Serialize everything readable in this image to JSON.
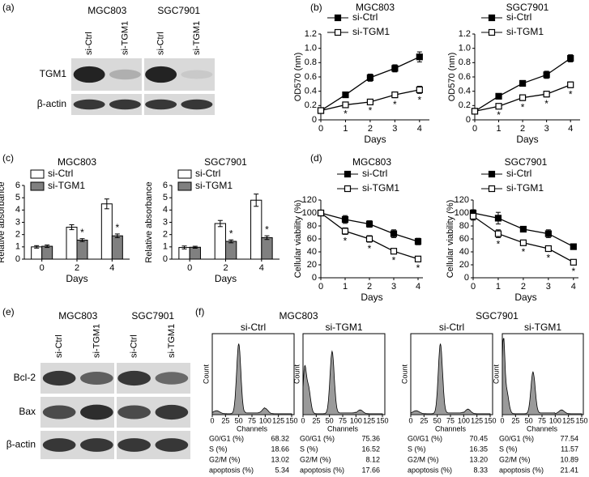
{
  "panel_labels": [
    "(a)",
    "(b)",
    "(c)",
    "(d)",
    "(e)",
    "(f)"
  ],
  "blot_a": {
    "groups": [
      "MGC803",
      "SGC7901"
    ],
    "lanes": [
      "si-Ctrl",
      "si-TGM1"
    ],
    "rows": [
      "TGM1",
      "β-actin"
    ]
  },
  "blot_e": {
    "groups": [
      "MGC803",
      "SGC7901"
    ],
    "lanes": [
      "si-Ctrl",
      "si-TGM1"
    ],
    "rows": [
      "Bcl-2",
      "Bax",
      "β-actin"
    ]
  },
  "chart_data": [
    {
      "type": "line",
      "title": "MGC803",
      "xlabel": "Days",
      "ylabel": "OD570 (nm)",
      "x": [
        0,
        1,
        2,
        3,
        4
      ],
      "xlim": [
        0,
        4.4
      ],
      "xticks": [
        0,
        1,
        2,
        3,
        4
      ],
      "ylim": [
        0,
        1.2
      ],
      "yticks": [
        0,
        0.2,
        0.4,
        0.6,
        0.8,
        {
          "value": 1,
          "label": "1.0"
        },
        1.2
      ],
      "series": [
        {
          "name": "si-Ctrl",
          "color": "#000000",
          "marker": "filled-square",
          "values": [
            0.13,
            0.35,
            0.59,
            0.72,
            0.88
          ],
          "errors": [
            0.03,
            0.03,
            0.05,
            0.05,
            0.07
          ]
        },
        {
          "name": "si-TGM1",
          "color": "#000000",
          "marker": "open-square",
          "values": [
            0.13,
            0.21,
            0.25,
            0.35,
            0.42
          ],
          "errors": [
            0.03,
            0.03,
            0.03,
            0.04,
            0.05
          ]
        }
      ],
      "annotations": [
        {
          "x": 1,
          "text": "*"
        },
        {
          "x": 2,
          "text": "*"
        },
        {
          "x": 3,
          "text": "*"
        },
        {
          "x": 4,
          "text": "*"
        }
      ]
    },
    {
      "type": "line",
      "title": "SGC7901",
      "xlabel": "Days",
      "ylabel": "OD570 (nm)",
      "x": [
        0,
        1,
        2,
        3,
        4
      ],
      "xlim": [
        0,
        4.4
      ],
      "xticks": [
        0,
        1,
        2,
        3,
        4
      ],
      "ylim": [
        0,
        1.2
      ],
      "yticks": [
        0,
        0.2,
        0.4,
        0.6,
        0.8,
        {
          "value": 1,
          "label": "1.0"
        },
        1.2
      ],
      "series": [
        {
          "name": "si-Ctrl",
          "color": "#000000",
          "marker": "filled-square",
          "values": [
            0.12,
            0.33,
            0.51,
            0.63,
            0.86
          ],
          "errors": [
            0.03,
            0.03,
            0.04,
            0.05,
            0.05
          ]
        },
        {
          "name": "si-TGM1",
          "color": "#000000",
          "marker": "open-square",
          "values": [
            0.12,
            0.19,
            0.31,
            0.36,
            0.49
          ],
          "errors": [
            0.03,
            0.03,
            0.04,
            0.04,
            0.04
          ]
        }
      ],
      "annotations": [
        {
          "x": 1,
          "text": "*"
        },
        {
          "x": 2,
          "text": "*"
        },
        {
          "x": 3,
          "text": "*"
        },
        {
          "x": 4,
          "text": "*"
        }
      ]
    },
    {
      "type": "bar",
      "title": "MGC803",
      "xlabel": "Days",
      "ylabel": "Relative absorbance",
      "categories": [
        "0",
        "2",
        "4"
      ],
      "ylim": [
        0,
        6
      ],
      "yticks": [
        0,
        1,
        2,
        3,
        4,
        5,
        6
      ],
      "series": [
        {
          "name": "si-Ctrl",
          "color": "#ffffff",
          "values": [
            1.0,
            2.6,
            4.5
          ],
          "errors": [
            0.1,
            0.2,
            0.4
          ]
        },
        {
          "name": "si-TGM1",
          "color": "#808080",
          "values": [
            1.05,
            1.55,
            1.9
          ],
          "errors": [
            0.1,
            0.12,
            0.15
          ]
        }
      ],
      "annotations": [
        {
          "category": "2",
          "text": "*"
        },
        {
          "category": "4",
          "text": "*"
        }
      ]
    },
    {
      "type": "bar",
      "title": "SGC7901",
      "xlabel": "Days",
      "ylabel": "Relative absorbance",
      "categories": [
        "0",
        "2",
        "4"
      ],
      "ylim": [
        0,
        6
      ],
      "yticks": [
        0,
        1,
        2,
        3,
        4,
        5,
        6
      ],
      "series": [
        {
          "name": "si-Ctrl",
          "color": "#ffffff",
          "values": [
            0.95,
            2.9,
            4.8
          ],
          "errors": [
            0.12,
            0.25,
            0.5
          ]
        },
        {
          "name": "si-TGM1",
          "color": "#808080",
          "values": [
            0.97,
            1.45,
            1.75
          ],
          "errors": [
            0.08,
            0.12,
            0.15
          ]
        }
      ],
      "annotations": [
        {
          "category": "2",
          "text": "*"
        },
        {
          "category": "4",
          "text": "*"
        }
      ]
    },
    {
      "type": "line",
      "title": "MGC803",
      "xlabel": "Days",
      "ylabel": "Cellular viability (%)",
      "x": [
        0,
        1,
        2,
        3,
        4
      ],
      "xlim": [
        0,
        4.2
      ],
      "xticks": [
        0,
        1,
        2,
        3,
        4
      ],
      "ylim": [
        0,
        120
      ],
      "yticks": [
        0,
        20,
        40,
        60,
        80,
        100,
        120
      ],
      "series": [
        {
          "name": "si-Ctrl",
          "color": "#000000",
          "marker": "filled-square",
          "values": [
            100,
            90,
            83,
            68,
            56
          ],
          "errors": [
            4,
            6,
            5,
            6,
            5
          ]
        },
        {
          "name": "si-TGM1",
          "color": "#000000",
          "marker": "open-square",
          "values": [
            100,
            72,
            60,
            41,
            29
          ],
          "errors": [
            4,
            5,
            5,
            4,
            4
          ]
        }
      ],
      "annotations": [
        {
          "x": 1,
          "text": "*"
        },
        {
          "x": 2,
          "text": "*"
        },
        {
          "x": 3,
          "text": "*"
        },
        {
          "x": 4,
          "text": "*"
        }
      ]
    },
    {
      "type": "line",
      "title": "SGC7901",
      "xlabel": "Days",
      "ylabel": "Cellular viability (%)",
      "x": [
        0,
        1,
        2,
        3,
        4
      ],
      "xlim": [
        0,
        4.2
      ],
      "xticks": [
        0,
        1,
        2,
        3,
        4
      ],
      "ylim": [
        0,
        120
      ],
      "yticks": [
        0,
        20,
        40,
        60,
        80,
        100,
        120
      ],
      "series": [
        {
          "name": "si-Ctrl",
          "color": "#000000",
          "marker": "filled-square",
          "values": [
            100,
            92,
            75,
            68,
            48
          ],
          "errors": [
            5,
            9,
            4,
            6,
            4
          ]
        },
        {
          "name": "si-TGM1",
          "color": "#000000",
          "marker": "open-square",
          "values": [
            95,
            68,
            54,
            45,
            24
          ],
          "errors": [
            6,
            6,
            4,
            4,
            4
          ]
        }
      ],
      "annotations": [
        {
          "x": 1,
          "text": "*"
        },
        {
          "x": 2,
          "text": "*"
        },
        {
          "x": 3,
          "text": "*"
        },
        {
          "x": 4,
          "text": "*"
        }
      ]
    }
  ],
  "flow": {
    "xlabel": "Channels",
    "ylabel": "Count",
    "xlim": [
      0,
      150
    ],
    "xticks": [
      0,
      25,
      50,
      75,
      100,
      125,
      150
    ],
    "stat_labels": [
      "G0/G1 (%)",
      "S (%)",
      "G2/M (%)",
      "apoptosis (%)"
    ],
    "groups": [
      {
        "title": "MGC803",
        "panels": [
          {
            "title": "si-Ctrl",
            "stats": [
              "68.32",
              "18.66",
              "13.02",
              "5.34"
            ]
          },
          {
            "title": "si-TGM1",
            "stats": [
              "75.36",
              "16.52",
              "8.12",
              "17.66"
            ]
          }
        ]
      },
      {
        "title": "SGC7901",
        "panels": [
          {
            "title": "si-Ctrl",
            "stats": [
              "70.45",
              "16.35",
              "13.20",
              "8.33"
            ]
          },
          {
            "title": "si-TGM1",
            "stats": [
              "77.54",
              "11.57",
              "10.89",
              "21.41"
            ]
          }
        ]
      }
    ]
  }
}
